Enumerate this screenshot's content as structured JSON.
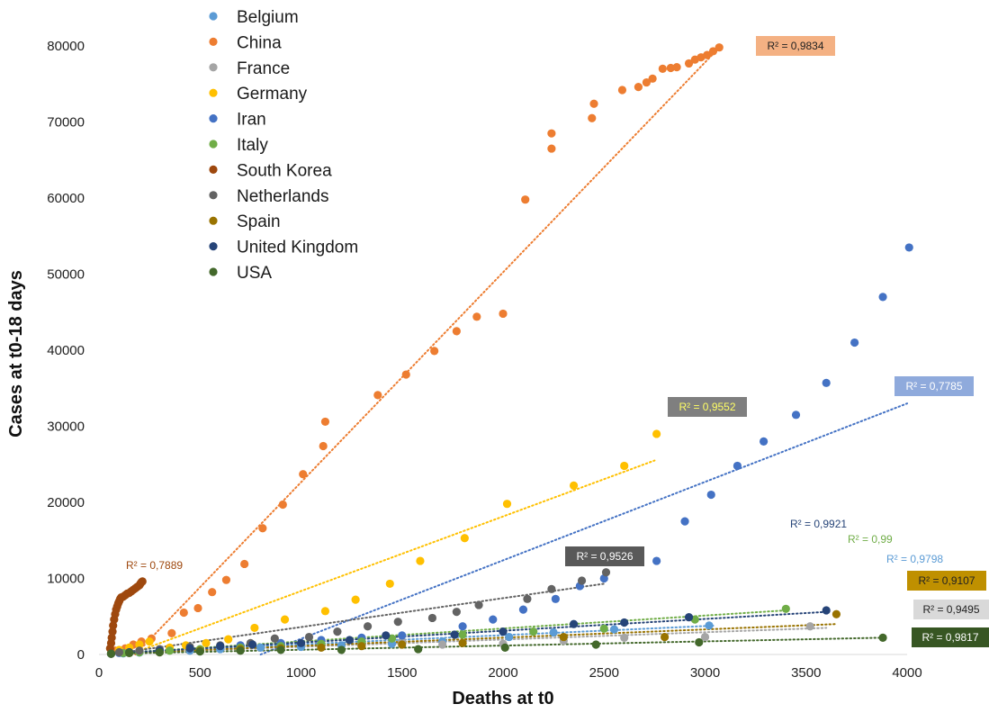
{
  "chart_data": {
    "type": "scatter",
    "xlabel": "Deaths at t0",
    "ylabel": "Cases at t0-18 days",
    "xlim": [
      0,
      4000
    ],
    "ylim": [
      0,
      80000
    ],
    "x_ticks": [
      "0",
      "500",
      "1000",
      "1500",
      "2000",
      "2500",
      "3000",
      "3500",
      "4000"
    ],
    "y_ticks": [
      "0",
      "10000",
      "20000",
      "30000",
      "40000",
      "50000",
      "60000",
      "70000",
      "80000"
    ],
    "grid": false,
    "legend_position": "top-left",
    "trendline_style": "dotted linear",
    "series": [
      {
        "name": "Belgium",
        "color": "#5b9bd5",
        "r2_label": "R² = 0,9798",
        "r2_style": "text",
        "trend": [
          [
            50,
            200
          ],
          [
            3050,
            3800
          ]
        ],
        "points": [
          [
            60,
            100
          ],
          [
            120,
            150
          ],
          [
            200,
            250
          ],
          [
            300,
            350
          ],
          [
            450,
            500
          ],
          [
            600,
            700
          ],
          [
            800,
            900
          ],
          [
            1000,
            1000
          ],
          [
            1200,
            1200
          ],
          [
            1450,
            1400
          ],
          [
            1700,
            1700
          ],
          [
            2030,
            2300
          ],
          [
            2250,
            2900
          ],
          [
            2550,
            3300
          ],
          [
            3020,
            3800
          ]
        ]
      },
      {
        "name": "China",
        "color": "#ed7d31",
        "r2_label": "R² = 0,9834",
        "r2_style": "box",
        "r2_bg": "#f4b183",
        "r2_fg": "#222222",
        "trend": [
          [
            180,
            0
          ],
          [
            3060,
            79500
          ]
        ],
        "points": [
          [
            80,
            500
          ],
          [
            130,
            800
          ],
          [
            170,
            1300
          ],
          [
            210,
            1700
          ],
          [
            260,
            2100
          ],
          [
            360,
            2800
          ],
          [
            420,
            5500
          ],
          [
            490,
            6100
          ],
          [
            560,
            8200
          ],
          [
            630,
            9800
          ],
          [
            720,
            11900
          ],
          [
            810,
            16600
          ],
          [
            910,
            19700
          ],
          [
            1010,
            23700
          ],
          [
            1110,
            27400
          ],
          [
            1120,
            30600
          ],
          [
            1380,
            34100
          ],
          [
            1520,
            36800
          ],
          [
            1660,
            39900
          ],
          [
            1770,
            42500
          ],
          [
            1870,
            44400
          ],
          [
            2000,
            44800
          ],
          [
            2110,
            59800
          ],
          [
            2240,
            66500
          ],
          [
            2240,
            68500
          ],
          [
            2440,
            70500
          ],
          [
            2450,
            72400
          ],
          [
            2590,
            74200
          ],
          [
            2670,
            74600
          ],
          [
            2710,
            75200
          ],
          [
            2740,
            75700
          ],
          [
            2790,
            77000
          ],
          [
            2830,
            77100
          ],
          [
            2860,
            77200
          ],
          [
            2920,
            77700
          ],
          [
            2950,
            78200
          ],
          [
            2980,
            78500
          ],
          [
            3010,
            78800
          ],
          [
            3040,
            79300
          ],
          [
            3070,
            79800
          ]
        ]
      },
      {
        "name": "France",
        "color": "#a5a5a5",
        "r2_label": "R² = 0,9495",
        "r2_style": "box",
        "r2_bg": "#d9d9d9",
        "r2_fg": "#222222",
        "trend": [
          [
            50,
            100
          ],
          [
            3600,
            3500
          ]
        ],
        "points": [
          [
            60,
            100
          ],
          [
            150,
            200
          ],
          [
            300,
            300
          ],
          [
            500,
            600
          ],
          [
            700,
            900
          ],
          [
            900,
            1100
          ],
          [
            1100,
            1300
          ],
          [
            1300,
            1500
          ],
          [
            1500,
            1700
          ],
          [
            1700,
            1300
          ],
          [
            2000,
            1400
          ],
          [
            2300,
            1800
          ],
          [
            2600,
            2200
          ],
          [
            3000,
            2300
          ],
          [
            3520,
            3700
          ]
        ]
      },
      {
        "name": "Germany",
        "color": "#ffc000",
        "r2_label": "R² = 0,9552",
        "r2_style": "box",
        "r2_bg": "#7f7f7f",
        "r2_fg": "#ffff66",
        "trend": [
          [
            150,
            0
          ],
          [
            2750,
            25500
          ]
        ],
        "points": [
          [
            100,
            600
          ],
          [
            150,
            900
          ],
          [
            200,
            1300
          ],
          [
            250,
            1700
          ],
          [
            350,
            900
          ],
          [
            430,
            1200
          ],
          [
            530,
            1500
          ],
          [
            640,
            2000
          ],
          [
            770,
            3500
          ],
          [
            920,
            4600
          ],
          [
            1120,
            5700
          ],
          [
            1270,
            7200
          ],
          [
            1440,
            9300
          ],
          [
            1590,
            12300
          ],
          [
            1810,
            15300
          ],
          [
            2020,
            19800
          ],
          [
            2350,
            22200
          ],
          [
            2600,
            24800
          ],
          [
            2760,
            29000
          ]
        ]
      },
      {
        "name": "Iran",
        "color": "#4472c4",
        "r2_label": "R² = 0,7785",
        "r2_style": "box",
        "r2_bg": "#8faadc",
        "r2_fg": "#ffffff",
        "trend": [
          [
            800,
            0
          ],
          [
            4000,
            33000
          ]
        ],
        "points": [
          [
            100,
            200
          ],
          [
            200,
            400
          ],
          [
            300,
            600
          ],
          [
            450,
            900
          ],
          [
            700,
            1200
          ],
          [
            900,
            1500
          ],
          [
            1100,
            1900
          ],
          [
            1300,
            2200
          ],
          [
            1500,
            2500
          ],
          [
            1800,
            3700
          ],
          [
            1950,
            4600
          ],
          [
            2100,
            5900
          ],
          [
            2260,
            7300
          ],
          [
            2380,
            9000
          ],
          [
            2500,
            10000
          ],
          [
            2760,
            12300
          ],
          [
            2900,
            17500
          ],
          [
            3030,
            21000
          ],
          [
            3160,
            24800
          ],
          [
            3290,
            28000
          ],
          [
            3450,
            31500
          ],
          [
            3600,
            35700
          ],
          [
            3740,
            41000
          ],
          [
            3880,
            47000
          ],
          [
            4010,
            53500
          ]
        ]
      },
      {
        "name": "Italy",
        "color": "#70ad47",
        "r2_label": "R² = 0,99",
        "r2_style": "text",
        "trend": [
          [
            50,
            100
          ],
          [
            3400,
            5800
          ]
        ],
        "points": [
          [
            60,
            150
          ],
          [
            120,
            200
          ],
          [
            200,
            300
          ],
          [
            350,
            500
          ],
          [
            500,
            700
          ],
          [
            700,
            900
          ],
          [
            900,
            1100
          ],
          [
            1100,
            1400
          ],
          [
            1300,
            1700
          ],
          [
            1450,
            2100
          ],
          [
            1800,
            2600
          ],
          [
            2150,
            3000
          ],
          [
            2500,
            3400
          ],
          [
            2950,
            4600
          ],
          [
            3400,
            6000
          ]
        ]
      },
      {
        "name": "South Korea",
        "color": "#9e480e",
        "r2_label": "R² = 0,7889",
        "r2_style": "text",
        "trend": [],
        "points": [
          [
            55,
            800
          ],
          [
            60,
            1500
          ],
          [
            63,
            2200
          ],
          [
            67,
            3000
          ],
          [
            70,
            3800
          ],
          [
            75,
            4600
          ],
          [
            80,
            5300
          ],
          [
            85,
            5900
          ],
          [
            90,
            6300
          ],
          [
            95,
            6700
          ],
          [
            100,
            7000
          ],
          [
            105,
            7300
          ],
          [
            110,
            7500
          ],
          [
            120,
            7600
          ],
          [
            130,
            7800
          ],
          [
            140,
            8000
          ],
          [
            150,
            8100
          ],
          [
            160,
            8300
          ],
          [
            170,
            8500
          ],
          [
            180,
            8700
          ],
          [
            190,
            8900
          ],
          [
            200,
            9100
          ],
          [
            205,
            9300
          ],
          [
            210,
            9500
          ],
          [
            215,
            9600
          ]
        ]
      },
      {
        "name": "Netherlands",
        "color": "#636363",
        "r2_label": "R² = 0,9526",
        "r2_style": "box",
        "r2_bg": "#595959",
        "r2_fg": "#ffffff",
        "trend": [
          [
            50,
            0
          ],
          [
            2500,
            9300
          ]
        ],
        "points": [
          [
            100,
            300
          ],
          [
            200,
            500
          ],
          [
            300,
            700
          ],
          [
            450,
            1000
          ],
          [
            600,
            1200
          ],
          [
            750,
            1500
          ],
          [
            870,
            2100
          ],
          [
            1040,
            2300
          ],
          [
            1180,
            3000
          ],
          [
            1330,
            3700
          ],
          [
            1480,
            4300
          ],
          [
            1650,
            4800
          ],
          [
            1770,
            5600
          ],
          [
            1880,
            6500
          ],
          [
            2120,
            7300
          ],
          [
            2240,
            8600
          ],
          [
            2390,
            9700
          ],
          [
            2510,
            10800
          ]
        ]
      },
      {
        "name": "Spain",
        "color": "#997300",
        "r2_label": "R² = 0,9107",
        "r2_style": "box",
        "r2_bg": "#bf9000",
        "r2_fg": "#222222",
        "trend": [
          [
            50,
            100
          ],
          [
            3650,
            4000
          ]
        ],
        "points": [
          [
            60,
            100
          ],
          [
            150,
            200
          ],
          [
            300,
            300
          ],
          [
            500,
            500
          ],
          [
            700,
            700
          ],
          [
            900,
            800
          ],
          [
            1100,
            900
          ],
          [
            1300,
            1100
          ],
          [
            1500,
            1300
          ],
          [
            1800,
            1500
          ],
          [
            2300,
            2300
          ],
          [
            2800,
            2300
          ],
          [
            3650,
            5300
          ]
        ]
      },
      {
        "name": "United Kingdom",
        "color": "#264478",
        "r2_label": "R² = 0,9921",
        "r2_style": "text",
        "trend": [
          [
            50,
            100
          ],
          [
            3600,
            5600
          ]
        ],
        "points": [
          [
            60,
            100
          ],
          [
            150,
            300
          ],
          [
            300,
            500
          ],
          [
            450,
            800
          ],
          [
            600,
            1100
          ],
          [
            760,
            1300
          ],
          [
            1000,
            1500
          ],
          [
            1240,
            1900
          ],
          [
            1420,
            2500
          ],
          [
            1760,
            2600
          ],
          [
            2000,
            3000
          ],
          [
            2350,
            4000
          ],
          [
            2600,
            4200
          ],
          [
            2920,
            4900
          ],
          [
            3600,
            5800
          ]
        ]
      },
      {
        "name": "USA",
        "color": "#43682b",
        "r2_label": "R² = 0,9817",
        "r2_style": "box",
        "r2_bg": "#375623",
        "r2_fg": "#ffffff",
        "trend": [
          [
            50,
            100
          ],
          [
            3870,
            2200
          ]
        ],
        "points": [
          [
            60,
            100
          ],
          [
            150,
            200
          ],
          [
            300,
            300
          ],
          [
            500,
            400
          ],
          [
            700,
            500
          ],
          [
            900,
            600
          ],
          [
            1200,
            600
          ],
          [
            1580,
            700
          ],
          [
            2010,
            900
          ],
          [
            2460,
            1300
          ],
          [
            2970,
            1600
          ],
          [
            3880,
            2200
          ]
        ]
      }
    ]
  }
}
